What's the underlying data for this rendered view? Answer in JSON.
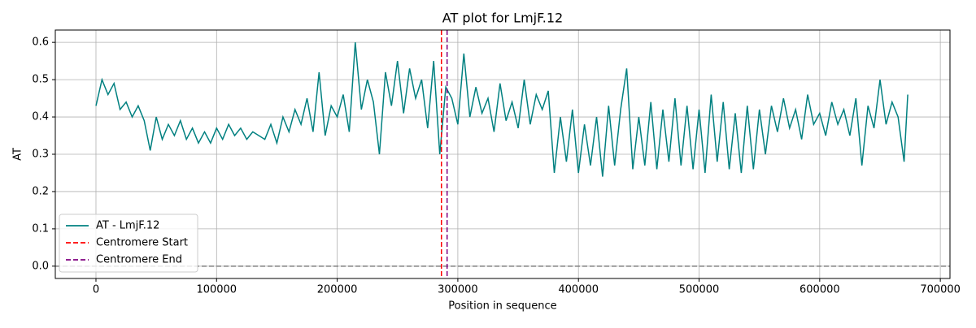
{
  "chart_data": {
    "type": "line",
    "title": "AT plot for LmjF.12",
    "x_label": "Position in sequence",
    "y_label": "AT",
    "x": [
      0,
      5000,
      10000,
      15000,
      20000,
      25000,
      30000,
      35000,
      40000,
      45000,
      50000,
      55000,
      60000,
      65000,
      70000,
      75000,
      80000,
      85000,
      90000,
      95000,
      100000,
      105000,
      110000,
      115000,
      120000,
      125000,
      130000,
      135000,
      140000,
      145000,
      150000,
      155000,
      160000,
      165000,
      170000,
      175000,
      180000,
      185000,
      190000,
      195000,
      200000,
      205000,
      210000,
      215000,
      220000,
      225000,
      230000,
      235000,
      240000,
      245000,
      250000,
      255000,
      260000,
      265000,
      270000,
      275000,
      280000,
      285000,
      290000,
      295000,
      300000,
      305000,
      310000,
      315000,
      320000,
      325000,
      330000,
      335000,
      340000,
      345000,
      350000,
      355000,
      360000,
      365000,
      370000,
      375000,
      380000,
      385000,
      390000,
      395000,
      400000,
      405000,
      410000,
      415000,
      420000,
      425000,
      430000,
      435000,
      440000,
      445000,
      450000,
      455000,
      460000,
      465000,
      470000,
      475000,
      480000,
      485000,
      490000,
      495000,
      500000,
      505000,
      510000,
      515000,
      520000,
      525000,
      530000,
      535000,
      540000,
      545000,
      550000,
      555000,
      560000,
      565000,
      570000,
      575000,
      580000,
      585000,
      590000,
      595000,
      600000,
      605000,
      610000,
      615000,
      620000,
      625000,
      630000,
      635000,
      640000,
      645000,
      650000,
      655000,
      660000,
      665000,
      670000,
      673000
    ],
    "series": [
      {
        "name": "AT - LmjF.12",
        "color": "#008080",
        "values": [
          0.43,
          0.5,
          0.46,
          0.49,
          0.42,
          0.44,
          0.4,
          0.43,
          0.39,
          0.31,
          0.4,
          0.34,
          0.38,
          0.35,
          0.39,
          0.34,
          0.37,
          0.33,
          0.36,
          0.33,
          0.37,
          0.34,
          0.38,
          0.35,
          0.37,
          0.34,
          0.36,
          0.35,
          0.34,
          0.38,
          0.33,
          0.4,
          0.36,
          0.42,
          0.38,
          0.45,
          0.36,
          0.52,
          0.35,
          0.43,
          0.4,
          0.46,
          0.36,
          0.6,
          0.42,
          0.5,
          0.44,
          0.3,
          0.52,
          0.43,
          0.55,
          0.41,
          0.53,
          0.45,
          0.5,
          0.37,
          0.55,
          0.3,
          0.48,
          0.45,
          0.38,
          0.57,
          0.4,
          0.48,
          0.41,
          0.45,
          0.36,
          0.49,
          0.39,
          0.44,
          0.37,
          0.5,
          0.38,
          0.46,
          0.42,
          0.47,
          0.25,
          0.4,
          0.28,
          0.42,
          0.25,
          0.38,
          0.27,
          0.4,
          0.24,
          0.43,
          0.27,
          0.42,
          0.53,
          0.26,
          0.4,
          0.27,
          0.44,
          0.26,
          0.42,
          0.28,
          0.45,
          0.27,
          0.43,
          0.26,
          0.42,
          0.25,
          0.46,
          0.28,
          0.44,
          0.26,
          0.41,
          0.25,
          0.43,
          0.26,
          0.42,
          0.3,
          0.43,
          0.36,
          0.45,
          0.37,
          0.42,
          0.34,
          0.46,
          0.38,
          0.41,
          0.35,
          0.44,
          0.38,
          0.42,
          0.35,
          0.45,
          0.27,
          0.43,
          0.37,
          0.5,
          0.38,
          0.44,
          0.4,
          0.28,
          0.46
        ]
      }
    ],
    "vlines": [
      {
        "name": "Centromere Start",
        "color": "#ff0000",
        "x": 286400
      },
      {
        "name": "Centromere End",
        "color": "#800080",
        "x": 291100
      }
    ],
    "hlines": [
      {
        "y": 0,
        "color": "#808080"
      }
    ],
    "xlim": [
      -33700,
      708000
    ],
    "ylim": [
      -0.033,
      0.633
    ],
    "xticks": [
      0,
      100000,
      200000,
      300000,
      400000,
      500000,
      600000,
      700000
    ],
    "yticks": [
      {
        "value": 0,
        "label": "0.0"
      },
      0.1,
      0.2,
      0.3,
      0.4,
      0.5,
      0.6
    ],
    "grid": true,
    "legend": "lower left"
  }
}
